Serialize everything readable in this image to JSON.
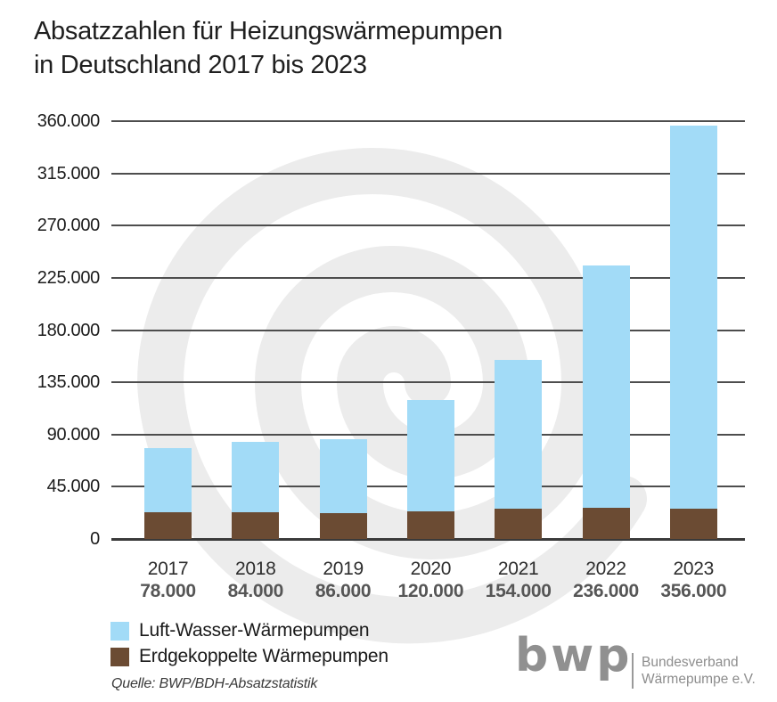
{
  "title": {
    "line1": "Absatzzahlen für Heizungswärmepumpen",
    "line2": "in Deutschland 2017 bis 2023"
  },
  "chart_data": {
    "type": "bar",
    "stacked": true,
    "title": "Absatzzahlen für Heizungswärmepumpen in Deutschland 2017 bis 2023",
    "categories": [
      "2017",
      "2018",
      "2019",
      "2020",
      "2021",
      "2022",
      "2023"
    ],
    "totals": [
      78000,
      84000,
      86000,
      120000,
      154000,
      236000,
      356000
    ],
    "total_labels": [
      "78.000",
      "84.000",
      "86.000",
      "120.000",
      "154.000",
      "236.000",
      "356.000"
    ],
    "series": [
      {
        "name": "Luft-Wasser-Wärmepumpen",
        "color": "#a2dbf7",
        "values": [
          55000,
          61000,
          64000,
          96000,
          128000,
          209000,
          330000
        ]
      },
      {
        "name": "Erdgekoppelte Wärmepumpen",
        "color": "#6b4b33",
        "values": [
          23000,
          23000,
          22000,
          24000,
          26000,
          27000,
          26000
        ]
      }
    ],
    "xlabel": "",
    "ylabel": "",
    "ylim": [
      0,
      360000
    ],
    "ytick_interval": 45000,
    "yticks": [
      "360.000",
      "315.000",
      "270.000",
      "225.000",
      "180.000",
      "135.000",
      "90.000",
      "45.000",
      "0"
    ],
    "grid": true,
    "legend_position": "bottom-left"
  },
  "legend": {
    "items": [
      {
        "label": "Luft-Wasser-Wärmepumpen",
        "color": "#a2dbf7"
      },
      {
        "label": "Erdgekoppelte Wärmepumpen",
        "color": "#6b4b33"
      }
    ]
  },
  "source": "Quelle: BWP/BDH-Absatzstatistik",
  "logo": {
    "abbr": "bwp",
    "org_line1": "Bundesverband",
    "org_line2": "Wärmepumpe e.V.",
    "color": "#909090"
  },
  "colors": {
    "air_water_bar": "#a2dbf7",
    "ground_bar": "#6b4b33",
    "gridline": "#4d4d4d",
    "axis": "#3a3a3a",
    "watermark": "#ececec",
    "background": "#ffffff"
  }
}
